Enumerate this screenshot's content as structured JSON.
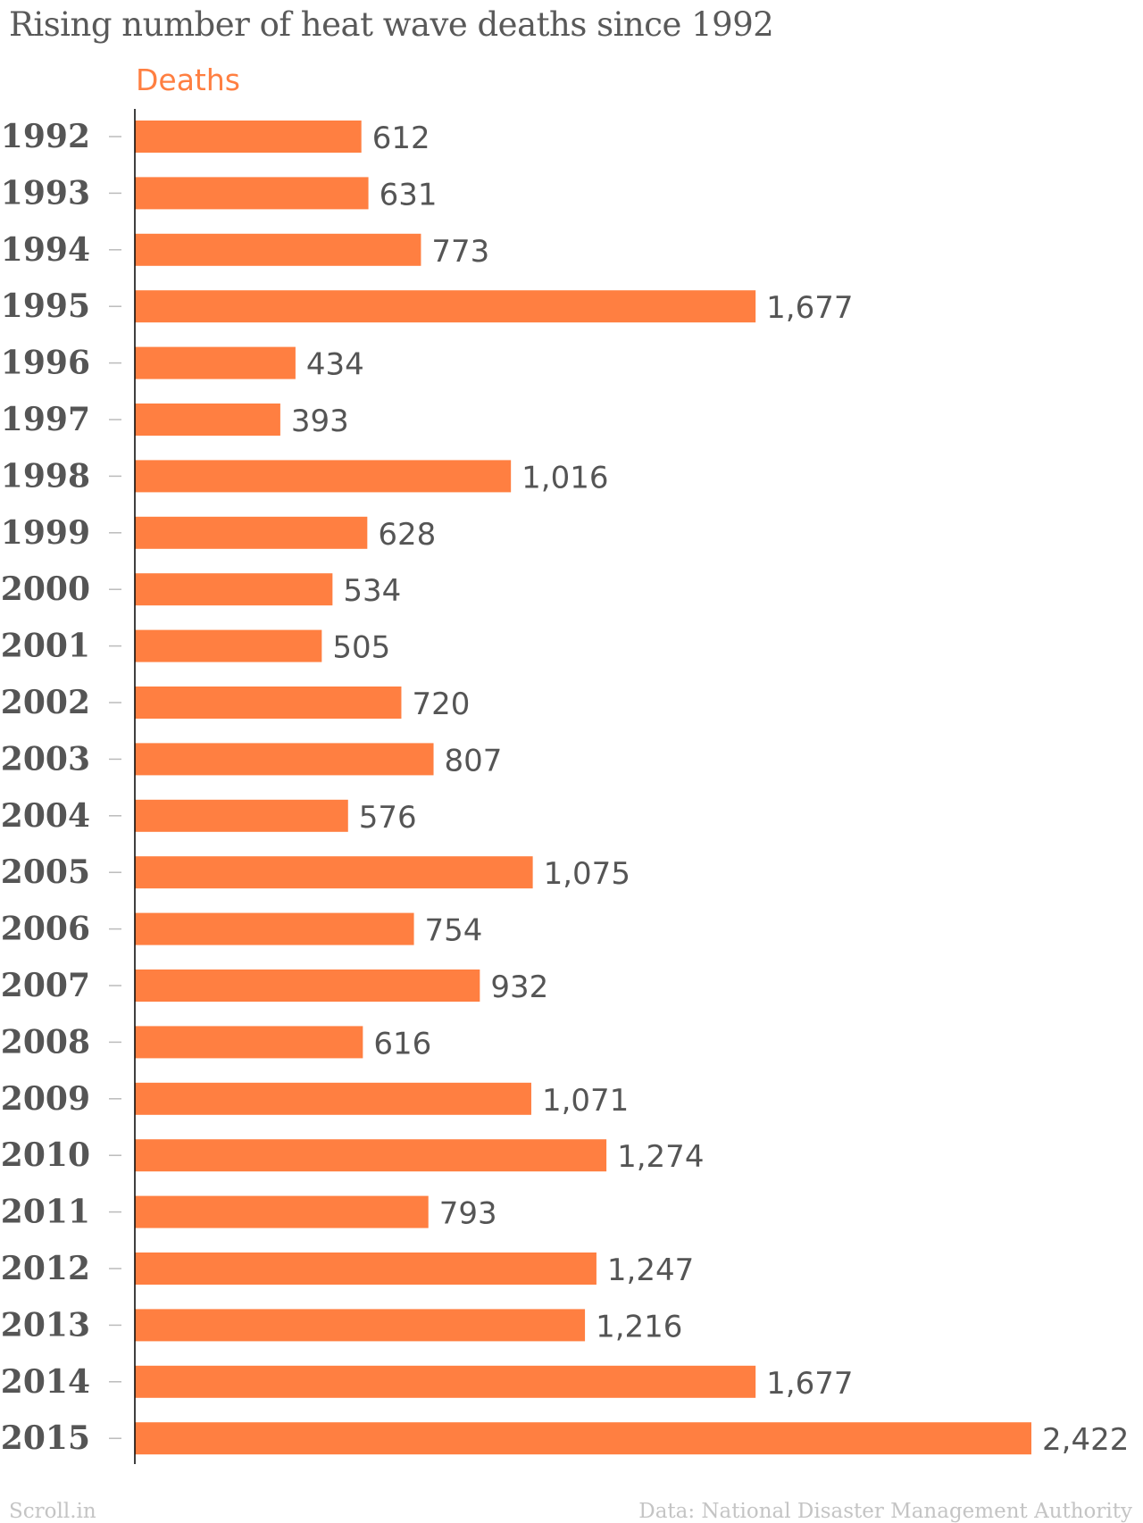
{
  "title": "Rising number of heat wave deaths since 1992",
  "series_name": "Deaths",
  "footer": {
    "brand": "Scroll.in",
    "source": "Data: National Disaster Management Authority"
  },
  "colors": {
    "bar": "#ff7f41",
    "text": "#555555",
    "axis": "#000000",
    "tick": "#bbbbbb",
    "footer": "#c4c4c4"
  },
  "chart_data": {
    "type": "bar",
    "orientation": "horizontal",
    "title": "Rising number of heat wave deaths since 1992",
    "xlabel": "",
    "ylabel": "",
    "xlim": [
      0,
      2422
    ],
    "grid": false,
    "legend": "top-left",
    "categories": [
      "1992",
      "1993",
      "1994",
      "1995",
      "1996",
      "1997",
      "1998",
      "1999",
      "2000",
      "2001",
      "2002",
      "2003",
      "2004",
      "2005",
      "2006",
      "2007",
      "2008",
      "2009",
      "2010",
      "2011",
      "2012",
      "2013",
      "2014",
      "2015"
    ],
    "series": [
      {
        "name": "Deaths",
        "values": [
          612,
          631,
          773,
          1677,
          434,
          393,
          1016,
          628,
          534,
          505,
          720,
          807,
          576,
          1075,
          754,
          932,
          616,
          1071,
          1274,
          793,
          1247,
          1216,
          1677,
          2422
        ],
        "labels": [
          "612",
          "631",
          "773",
          "1,677",
          "434",
          "393",
          "1,016",
          "628",
          "534",
          "505",
          "720",
          "807",
          "576",
          "1,075",
          "754",
          "932",
          "616",
          "1,071",
          "1,274",
          "793",
          "1,247",
          "1,216",
          "1,677",
          "2,422"
        ]
      }
    ]
  }
}
